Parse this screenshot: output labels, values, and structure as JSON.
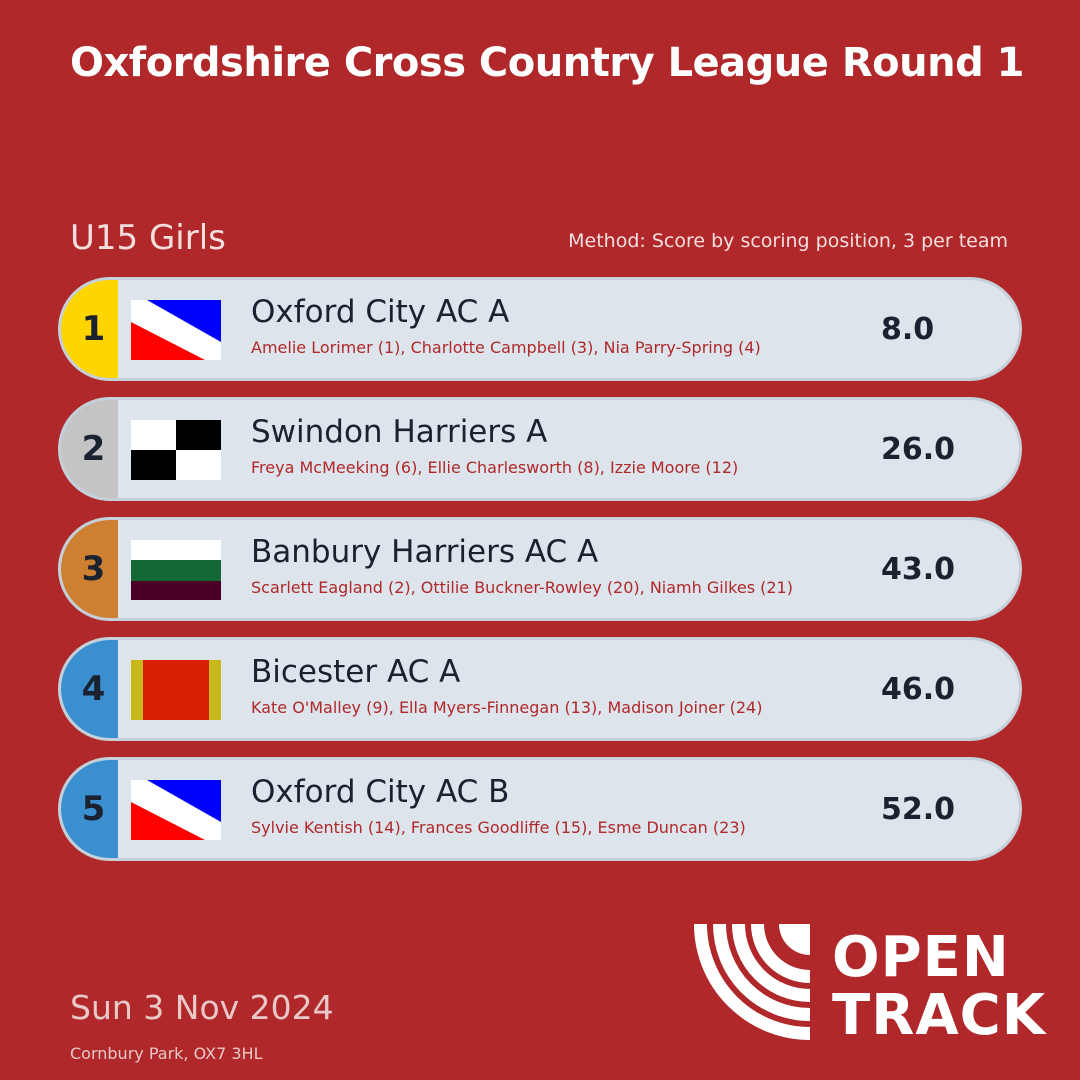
{
  "title": "Oxfordshire Cross Country League Round 1",
  "category": "U15 Girls",
  "method": "Method: Score by scoring position, 3 per team",
  "colors": {
    "background": "#b0282a",
    "gold": "#ffd500",
    "silver": "#c4c4c4",
    "bronze": "#cd7f32",
    "other": "#3a8fd0"
  },
  "teams": [
    {
      "rank": "1",
      "name": "Oxford City AC A",
      "runners": "Amelie Lorimer (1), Charlotte Campbell (3), Nia Parry-Spring (4)",
      "score": "8.0",
      "rank_color": "#ffd500",
      "flag": "oxford"
    },
    {
      "rank": "2",
      "name": "Swindon Harriers A",
      "runners": "Freya McMeeking (6), Ellie Charlesworth (8), Izzie Moore (12)",
      "score": "26.0",
      "rank_color": "#c4c4c4",
      "flag": "swindon"
    },
    {
      "rank": "3",
      "name": "Banbury Harriers AC A",
      "runners": "Scarlett Eagland (2), Ottilie Buckner-Rowley (20), Niamh Gilkes (21)",
      "score": "43.0",
      "rank_color": "#cd7f32",
      "flag": "banbury"
    },
    {
      "rank": "4",
      "name": "Bicester AC A",
      "runners": "Kate O'Malley (9), Ella Myers-Finnegan (13), Madison Joiner (24)",
      "score": "46.0",
      "rank_color": "#3a8fd0",
      "flag": "bicester"
    },
    {
      "rank": "5",
      "name": "Oxford City AC B",
      "runners": "Sylvie Kentish (14), Frances Goodliffe (15), Esme Duncan (23)",
      "score": "52.0",
      "rank_color": "#3a8fd0",
      "flag": "oxford"
    }
  ],
  "date": "Sun 3 Nov 2024",
  "venue": "Cornbury Park, OX7 3HL",
  "logo": {
    "line1": "OPEN",
    "line2": "TRACK"
  }
}
